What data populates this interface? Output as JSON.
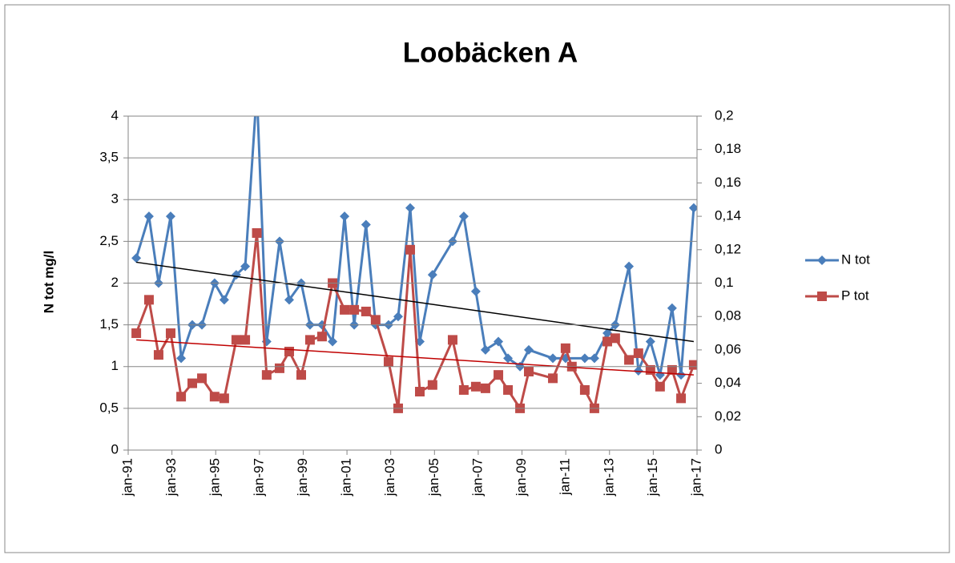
{
  "chart_data": {
    "type": "line",
    "title": "Loobäcken A",
    "y_label": "N tot mg/l",
    "xlim": [
      1991,
      2017
    ],
    "xticks": [
      {
        "value": 1991,
        "label": "jan-91"
      },
      {
        "value": 1993,
        "label": "jan-93"
      },
      {
        "value": 1995,
        "label": "jan-95"
      },
      {
        "value": 1997,
        "label": "jan-97"
      },
      {
        "value": 1999,
        "label": "jan-99"
      },
      {
        "value": 2001,
        "label": "jan-01"
      },
      {
        "value": 2003,
        "label": "jan-03"
      },
      {
        "value": 2005,
        "label": "jan-05"
      },
      {
        "value": 2007,
        "label": "jan-07"
      },
      {
        "value": 2009,
        "label": "jan-09"
      },
      {
        "value": 2011,
        "label": "jan-11"
      },
      {
        "value": 2013,
        "label": "jan-13"
      },
      {
        "value": 2015,
        "label": "jan-15"
      },
      {
        "value": 2017,
        "label": "jan-17"
      }
    ],
    "ylim": [
      0,
      4
    ],
    "yticks": [
      0,
      {
        "value": 0.5,
        "label": "0,5"
      },
      1,
      {
        "value": 1.5,
        "label": "1,5"
      },
      2,
      {
        "value": 2.5,
        "label": "2,5"
      },
      3,
      {
        "value": 3.5,
        "label": "3,5"
      },
      4
    ],
    "y2lim": [
      0,
      0.2
    ],
    "y2ticks": [
      0,
      {
        "value": 0.02,
        "label": "0,02"
      },
      {
        "value": 0.04,
        "label": "0,04"
      },
      {
        "value": 0.06,
        "label": "0,06"
      },
      {
        "value": 0.08,
        "label": "0,08"
      },
      {
        "value": 0.1,
        "label": "0,1"
      },
      {
        "value": 0.12,
        "label": "0,12"
      },
      {
        "value": 0.14,
        "label": "0,14"
      },
      {
        "value": 0.16,
        "label": "0,16"
      },
      {
        "value": 0.18,
        "label": "0,18"
      },
      {
        "value": 0.2,
        "label": "0,2"
      }
    ],
    "grid": true,
    "legend": "right",
    "series": [
      {
        "name": "N tot",
        "color": "#4a7ebb",
        "marker": "diamond",
        "x": [
          1991.37,
          1991.95,
          1992.39,
          1992.94,
          1993.42,
          1993.93,
          1994.37,
          1994.95,
          1995.39,
          1995.94,
          1996.35,
          1996.88,
          1997.33,
          1997.92,
          1998.36,
          1998.91,
          1999.31,
          1999.86,
          2000.34,
          2000.89,
          2001.33,
          2001.87,
          2002.31,
          2002.9,
          2003.34,
          2003.89,
          2004.33,
          2004.91,
          2005.83,
          2006.34,
          2006.89,
          2007.33,
          2007.92,
          2008.36,
          2008.91,
          2009.31,
          2010.41,
          2010.99,
          2011.87,
          2012.31,
          2012.9,
          2013.26,
          2013.89,
          2014.32,
          2014.87,
          2015.31,
          2015.86,
          2016.27,
          2016.85
        ],
        "values": [
          2.3,
          2.8,
          2.0,
          2.8,
          1.1,
          1.5,
          1.5,
          2.0,
          1.8,
          2.1,
          2.2,
          4.3,
          1.3,
          2.5,
          1.8,
          2.0,
          1.5,
          1.5,
          1.3,
          2.8,
          1.5,
          2.7,
          1.5,
          1.5,
          1.6,
          2.9,
          1.3,
          2.1,
          2.5,
          2.8,
          1.9,
          1.2,
          1.3,
          1.1,
          1.0,
          1.2,
          1.1,
          1.1,
          1.1,
          1.1,
          1.4,
          1.5,
          2.2,
          0.95,
          1.3,
          0.9,
          1.7,
          0.9,
          2.9
        ]
      },
      {
        "name": "P tot",
        "color": "#be4b48",
        "marker": "square",
        "axis": "y2",
        "x": [
          1991.37,
          1991.95,
          1992.39,
          1992.94,
          1993.42,
          1993.93,
          1994.37,
          1994.95,
          1995.39,
          1995.94,
          1996.35,
          1996.88,
          1997.33,
          1997.92,
          1998.36,
          1998.91,
          1999.31,
          1999.86,
          2000.34,
          2000.89,
          2001.33,
          2001.87,
          2002.31,
          2002.9,
          2003.34,
          2003.89,
          2004.33,
          2004.91,
          2005.83,
          2006.34,
          2006.89,
          2007.33,
          2007.92,
          2008.36,
          2008.91,
          2009.31,
          2010.41,
          2010.99,
          2011.28,
          2011.87,
          2012.31,
          2012.9,
          2013.26,
          2013.89,
          2014.32,
          2014.87,
          2015.31,
          2015.86,
          2016.27,
          2016.85
        ],
        "values": [
          0.07,
          0.09,
          0.057,
          0.07,
          0.032,
          0.04,
          0.043,
          0.032,
          0.031,
          0.066,
          0.066,
          0.13,
          0.045,
          0.049,
          0.059,
          0.045,
          0.066,
          0.068,
          0.1,
          0.084,
          0.084,
          0.083,
          0.078,
          0.053,
          0.025,
          0.12,
          0.035,
          0.039,
          0.066,
          0.036,
          0.038,
          0.037,
          0.045,
          0.036,
          0.025,
          0.047,
          0.043,
          0.061,
          0.05,
          0.036,
          0.025,
          0.065,
          0.067,
          0.054,
          0.058,
          0.048,
          0.038,
          0.048,
          0.031,
          0.051
        ]
      }
    ],
    "trendlines": [
      {
        "color": "#000000",
        "x": [
          1991.37,
          2016.85
        ],
        "values": [
          2.25,
          1.3
        ]
      },
      {
        "color": "#c00000",
        "axis": "y2",
        "x": [
          1991.37,
          2016.85
        ],
        "values": [
          0.066,
          0.045
        ]
      }
    ]
  }
}
